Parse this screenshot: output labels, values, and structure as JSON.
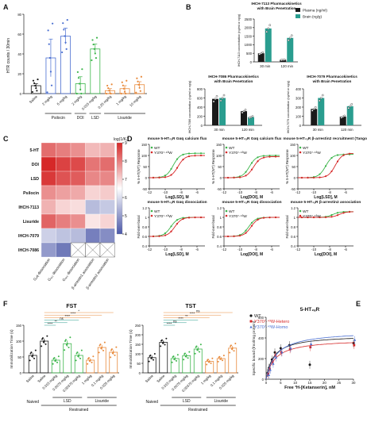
{
  "palette": {
    "teal": "#2a9d8f",
    "green": "#3bb54a",
    "orange": "#e8893a",
    "red": "#d62828",
    "blue": "#4a6fd1",
    "black": "#1a1a1a",
    "gray": "#9a9a9a"
  },
  "panelA": {
    "letter": "A",
    "ylabel": "HTR counts / 30min",
    "chart_data": {
      "type": "bar",
      "categories": [
        "Saline",
        "2 mg/kg",
        "5 mg/kg",
        "2 mg/kg",
        "0.015 mg/kg",
        "0.25 mg/kg",
        "1 mg/kg",
        "10 mg/kg"
      ],
      "values": [
        8,
        36,
        58,
        10,
        45,
        3,
        5,
        9
      ],
      "errors": [
        2,
        19,
        8,
        7,
        5,
        2,
        3,
        3
      ],
      "colors": [
        "#1a1a1a",
        "#4a6fd1",
        "#4a6fd1",
        "#3bb54a",
        "#3bb54a",
        "#e8893a",
        "#e8893a",
        "#e8893a"
      ],
      "ylim": [
        0,
        80
      ],
      "yticks": [
        0,
        20,
        40,
        60,
        80
      ],
      "groups": [
        {
          "label": "Psilocin",
          "from": 1,
          "to": 2
        },
        {
          "label": "DOI",
          "from": 3,
          "to": 3
        },
        {
          "label": "LSD",
          "from": 4,
          "to": 4
        },
        {
          "label": "Lisuride",
          "from": 5,
          "to": 7
        }
      ]
    }
  },
  "panelB": {
    "letter": "B",
    "legend": [
      "Plasma (ng/ml)",
      "Brain (ng/g)"
    ],
    "charts": [
      {
        "title_line1": "IHCH-7113 Pharmacokinetics",
        "title_line2": "with Brain Penetration",
        "ylabel": "IHCH-7113 concentration (ng/ml or ng/g)",
        "chart_data": {
          "type": "bar",
          "categories": [
            "30 min",
            "120 min"
          ],
          "series": [
            {
              "name": "Plasma (ng/ml)",
              "values": [
                500,
                120
              ]
            },
            {
              "name": "Brain (ng/g)",
              "values": [
                1950,
                1400
              ]
            }
          ],
          "ylim": [
            0,
            2500
          ],
          "yticks": [
            0,
            500,
            1000,
            1500,
            2000,
            2500
          ]
        }
      },
      {
        "title_line1": "IHCH-7086 Pharmacokinetics",
        "title_line2": "with Brain Penetration",
        "ylabel": "IHCH-7086 concentration (ng/ml or ng/g)",
        "chart_data": {
          "type": "bar",
          "categories": [
            "30 min",
            "120 min"
          ],
          "series": [
            {
              "name": "Plasma (ng/ml)",
              "values": [
                580,
                310
              ]
            },
            {
              "name": "Brain (ng/g)",
              "values": [
                600,
                180
              ]
            }
          ],
          "ylim": [
            0,
            800
          ],
          "yticks": [
            0,
            200,
            400,
            600,
            800
          ]
        }
      },
      {
        "title_line1": "IHCH-7079 Pharmacokinetics",
        "title_line2": "with Brain Penetration",
        "ylabel": "IHCH-7079 concentration (ng/ml or ng/g)",
        "chart_data": {
          "type": "bar",
          "categories": [
            "30 min",
            "120 min"
          ],
          "series": [
            {
              "name": "Plasma (ng/ml)",
              "values": [
                180,
                95
              ]
            },
            {
              "name": "Brain (ng/g)",
              "values": [
                300,
                210
              ]
            }
          ],
          "ylim": [
            0,
            400
          ],
          "yticks": [
            0,
            100,
            200,
            300,
            400
          ]
        }
      }
    ]
  },
  "panelC": {
    "letter": "C",
    "scale_title": "log(1/Kᵢ)",
    "chart_data": {
      "type": "heatmap",
      "rows": [
        "5-HT",
        "DOI",
        "LSD",
        "Psilocin",
        "IHCH-7113",
        "Lisuride",
        "IHCH-7079",
        "IHCH-7086"
      ],
      "columns": [
        "Gₐq dissociation",
        "Gₐ₁₁ dissociation",
        "Gₐ₁₅ dissociation",
        "β-arrestin1 association",
        "β-arrestin2 association"
      ],
      "values": [
        [
          8.2,
          8.0,
          7.8,
          7.3,
          7.4
        ],
        [
          9.0,
          8.7,
          8.6,
          8.1,
          8.2
        ],
        [
          8.8,
          8.5,
          8.4,
          7.9,
          7.9
        ],
        [
          7.8,
          7.6,
          7.5,
          7.0,
          7.1
        ],
        [
          7.4,
          7.0,
          6.9,
          5.5,
          5.7
        ],
        [
          8.3,
          8.0,
          7.8,
          6.8,
          7.0
        ],
        [
          5.8,
          5.6,
          5.5,
          4.6,
          4.8
        ],
        [
          5.0,
          4.5,
          null,
          null,
          null
        ]
      ],
      "vmin": 4,
      "vmax": 9,
      "scale_ticks": [
        9,
        8,
        7,
        6,
        5,
        4
      ],
      "colors": {
        "low": "#4b57a8",
        "mid": "#ffffff",
        "high": "#d62828"
      }
    }
  },
  "panelD": {
    "letter": "D",
    "plots": [
      {
        "title": "mouse 5-HT₂ₐR  Gαq calcium flux",
        "ylabel": "% 5-HT(WT) Response",
        "xlabel": "Log[LSD], M",
        "legend": [
          "WT",
          "Y370⁷·⁴³W"
        ],
        "chart_data": {
          "type": "line",
          "xlim": [
            -12,
            -5
          ],
          "ylim": [
            -50,
            150
          ],
          "series": [
            {
              "name": "WT",
              "logEC50": -9.0,
              "bottom": 0,
              "top": 110
            },
            {
              "name": "Y370⁷·⁴³W",
              "logEC50": -8.4,
              "bottom": 0,
              "top": 100
            }
          ]
        }
      },
      {
        "title": "mouse 5-HT₂ₐR  Gαq calcium flux",
        "ylabel": "% 5-HT(WT) Response",
        "xlabel": "Log[DOI], M",
        "legend": [
          "WT",
          "Y370⁷·⁴³W"
        ],
        "chart_data": {
          "type": "line",
          "xlim": [
            -12,
            -5
          ],
          "ylim": [
            -50,
            150
          ],
          "series": [
            {
              "name": "WT",
              "logEC50": -8.8,
              "bottom": 0,
              "top": 100
            },
            {
              "name": "Y370⁷·⁴³W",
              "logEC50": -8.3,
              "bottom": 0,
              "top": 95
            }
          ]
        }
      },
      {
        "title": "mouse 5-HT₂ₐR  β-arrestin2 recruitment (Tango)",
        "ylabel": "% 5-HT(WT) Response",
        "xlabel": "Log[LSD], M",
        "legend": [
          "WT",
          "Y370⁷·⁴³W"
        ],
        "chart_data": {
          "type": "line",
          "xlim": [
            -12,
            -5
          ],
          "ylim": [
            -50,
            150
          ],
          "series": [
            {
              "name": "WT",
              "logEC50": -8.5,
              "bottom": 0,
              "top": 105
            },
            {
              "name": "Y370⁷·⁴³W",
              "logEC50": -7.3,
              "bottom": 0,
              "top": 110
            }
          ]
        }
      },
      {
        "title": "mouse 5-HT₂ₐR  Gαq dissociation",
        "ylabel": "Fold-over-basal",
        "xlabel": "Log[LSD], M",
        "legend": [
          "WT",
          "Y370⁷·⁴³W"
        ],
        "chart_data": {
          "type": "line",
          "xlim": [
            -12,
            -5
          ],
          "ylim": [
            0.4,
            1.2
          ],
          "series": [
            {
              "name": "WT",
              "logEC50": -9.3,
              "bottom": 0.6,
              "top": 1.0
            },
            {
              "name": "Y370⁷·⁴³W",
              "logEC50": -8.8,
              "bottom": 0.6,
              "top": 1.0
            }
          ]
        }
      },
      {
        "title": "mouse 5-HT₂ₐR  Gαq dissociation",
        "ylabel": "Fold-over-basal",
        "xlabel": "Log[DOI], M",
        "legend": [
          "WT",
          "Y370⁷·⁴³W"
        ],
        "chart_data": {
          "type": "line",
          "xlim": [
            -12,
            -5
          ],
          "ylim": [
            0.4,
            1.2
          ],
          "series": [
            {
              "name": "WT",
              "logEC50": -8.9,
              "bottom": 0.6,
              "top": 1.0
            },
            {
              "name": "Y370⁷·⁴³W",
              "logEC50": -8.6,
              "bottom": 0.6,
              "top": 1.0
            }
          ]
        }
      },
      {
        "title": "mouse 5-HT₂ₐR  β-arrestin2 association",
        "ylabel": "Fold-over-basal",
        "xlabel": "Log[DOI], M",
        "legend": [
          "WT",
          "Y370⁷·⁴³W"
        ],
        "chart_data": {
          "type": "line",
          "xlim": [
            -12,
            -5
          ],
          "ylim": [
            0.4,
            1.2
          ],
          "series": [
            {
              "name": "WT",
              "logEC50": -7.6,
              "bottom": 1.0,
              "top": 1.12
            },
            {
              "name": "Y370⁷·⁴³W",
              "logEC50": -6.8,
              "bottom": 1.0,
              "top": 1.12
            }
          ]
        }
      }
    ]
  },
  "panelF": {
    "letter": "F",
    "ylabel": "Immobilization Time (s)",
    "group_labels": {
      "lsd": "LSD",
      "lisuride": "Lisuride",
      "restrained": "Restrained"
    },
    "charts": [
      {
        "title": "FST",
        "chart_data": {
          "type": "bar",
          "categories": [
            "Saline",
            "Saline",
            "0.015 mg/kg",
            "0.0075 mg/kg",
            "0.00375 mg/kg",
            "1 mg/kg",
            "0.1 mg/kg",
            "0.025 mg/kg"
          ],
          "values": [
            55,
            100,
            40,
            92,
            55,
            40,
            80,
            65
          ],
          "errors": [
            8,
            8,
            6,
            10,
            8,
            6,
            8,
            8
          ],
          "ylim": [
            0,
            150
          ],
          "yticks": [
            0,
            50,
            100,
            150
          ],
          "sig": [
            "****",
            "****",
            "ns",
            "**",
            "****"
          ],
          "ns_top": "*"
        }
      },
      {
        "title": "TST",
        "chart_data": {
          "type": "bar",
          "categories": [
            "Saline",
            "Saline",
            "0.015 mg/kg",
            "0.0075 mg/kg",
            "0.00375 mg/kg",
            "1 mg/kg",
            "0.1 mg/kg",
            "0.025 mg/kg"
          ],
          "values": [
            80,
            160,
            75,
            90,
            125,
            60,
            75,
            130
          ],
          "errors": [
            10,
            10,
            10,
            10,
            12,
            8,
            8,
            12
          ],
          "ylim": [
            0,
            250
          ],
          "yticks": [
            0,
            50,
            100,
            150,
            200,
            250
          ],
          "sig": [
            "****",
            "**",
            "****",
            "ns",
            "****"
          ],
          "ns_top": "ns"
        }
      }
    ],
    "naived": "Naived"
  },
  "panelE": {
    "letter": "E",
    "title": "5-HT₂ₐR",
    "ylabel": "Specific bound (fmol/mg protein)",
    "xlabel": "Free ³H-[Ketanserin], nM",
    "legend": [
      "WT",
      "Y370⁷·⁴³W-Hetero",
      "Y370⁷·⁴³W-Homo"
    ],
    "chart_data": {
      "type": "scatter",
      "xlim": [
        0,
        30
      ],
      "ylim": [
        0,
        600
      ],
      "xticks": [
        0,
        5,
        10,
        15,
        20,
        25,
        30
      ],
      "yticks": [
        0,
        200,
        400,
        600
      ],
      "series": [
        {
          "name": "WT",
          "Bmax": 430,
          "Kd": 2.6,
          "x": [
            0.5,
            1,
            2,
            3,
            5,
            8,
            15,
            30
          ],
          "y": [
            60,
            110,
            190,
            260,
            300,
            330,
            140,
            350
          ]
        },
        {
          "name": "Y370⁷·⁴³W-Hetero",
          "Bmax": 390,
          "Kd": 3.0,
          "x": [
            0.5,
            1,
            2,
            3,
            5,
            8,
            15,
            30
          ],
          "y": [
            50,
            100,
            170,
            230,
            260,
            290,
            310,
            330
          ]
        },
        {
          "name": "Y370⁷·⁴³W-Homo",
          "Bmax": 470,
          "Kd": 3.4,
          "x": [
            0.5,
            1,
            2,
            3,
            5,
            8,
            15,
            30
          ],
          "y": [
            40,
            90,
            150,
            210,
            260,
            300,
            340,
            380
          ]
        }
      ]
    }
  }
}
